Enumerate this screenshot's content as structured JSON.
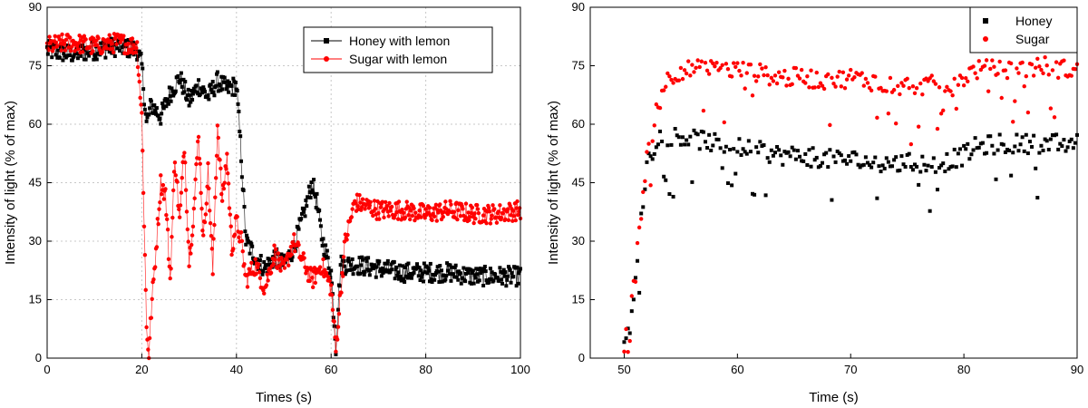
{
  "chart_data": [
    {
      "type": "line",
      "xlabel": "Times (s)",
      "ylabel": "Intensity of light (% of max)",
      "xlim": [
        0,
        100
      ],
      "ylim": [
        0,
        90
      ],
      "xticks": [
        0,
        20,
        40,
        60,
        80,
        100
      ],
      "yticks": [
        0,
        15,
        30,
        45,
        60,
        75,
        90
      ],
      "grid": true,
      "legend_position": "top-right",
      "series": [
        {
          "name": "Honey with lemon",
          "color": "#000000",
          "marker": "square",
          "x": [
            0,
            5,
            10,
            15,
            19,
            20,
            21,
            22,
            24,
            26,
            28,
            30,
            32,
            34,
            36,
            38,
            40,
            41,
            42,
            44,
            46,
            48,
            50,
            52,
            54,
            56,
            57,
            58,
            60,
            61,
            62,
            65,
            70,
            75,
            80,
            85,
            90,
            95,
            100
          ],
          "y": [
            79,
            78,
            79,
            80,
            79,
            75,
            60,
            65,
            62,
            68,
            72,
            66,
            70,
            67,
            71,
            69,
            70,
            52,
            30,
            26,
            23,
            26,
            24,
            28,
            36,
            45,
            40,
            31,
            22,
            3,
            24,
            24,
            23,
            22,
            22,
            22,
            21,
            21,
            21
          ]
        },
        {
          "name": "Sugar with lemon",
          "color": "#ff0000",
          "marker": "circle",
          "x": [
            0,
            5,
            10,
            15,
            19,
            20,
            21,
            21.5,
            22,
            23,
            24,
            25,
            26,
            27,
            28,
            29,
            30,
            31,
            32,
            33,
            34,
            35,
            36,
            37,
            38,
            39,
            40,
            41,
            42,
            44,
            46,
            48,
            50,
            52,
            54,
            56,
            58,
            60,
            61,
            62,
            63,
            65,
            70,
            75,
            80,
            85,
            90,
            95,
            100
          ],
          "y": [
            80,
            81,
            80,
            81,
            80,
            62,
            8,
            1,
            12,
            28,
            45,
            42,
            20,
            52,
            35,
            55,
            25,
            38,
            58,
            30,
            48,
            22,
            60,
            40,
            52,
            28,
            35,
            30,
            20,
            24,
            18,
            27,
            22,
            30,
            25,
            20,
            24,
            18,
            2,
            17,
            30,
            40,
            38,
            38,
            37,
            38,
            37,
            37,
            38
          ]
        }
      ]
    },
    {
      "type": "scatter",
      "xlabel": "Time (s)",
      "ylabel": "Intensity of light (% of max)",
      "xlim": [
        47,
        90
      ],
      "ylim": [
        0,
        90
      ],
      "xticks": [
        50,
        60,
        70,
        80,
        90
      ],
      "yticks": [
        0,
        15,
        30,
        45,
        60,
        75,
        90
      ],
      "grid": false,
      "legend_position": "top-right",
      "series": [
        {
          "name": "Honey",
          "color": "#000000",
          "marker": "square",
          "x": [
            50,
            50.5,
            51,
            51.5,
            52,
            53,
            54,
            55,
            56,
            57,
            58,
            60,
            62,
            64,
            66,
            68,
            70,
            72,
            74,
            76,
            78,
            79,
            80,
            81,
            83,
            85,
            87,
            89,
            90
          ],
          "y": [
            2,
            8,
            20,
            35,
            50,
            57,
            57,
            57,
            56,
            56,
            55,
            54,
            53,
            52,
            52,
            51,
            51,
            50,
            50,
            50,
            50,
            51,
            52,
            54,
            55,
            55,
            55,
            55,
            55
          ]
        },
        {
          "name": "Sugar",
          "color": "#ff0000",
          "marker": "circle",
          "x": [
            50,
            50.5,
            51,
            51.5,
            52,
            52.5,
            53,
            53.5,
            54,
            55,
            56,
            58,
            60,
            62,
            64,
            66,
            68,
            70,
            72,
            74,
            76,
            78,
            79,
            80,
            81,
            83,
            85,
            87,
            89,
            90
          ],
          "y": [
            4,
            10,
            22,
            38,
            52,
            60,
            66,
            70,
            72,
            74,
            74,
            74,
            74,
            73,
            72,
            72,
            71,
            72,
            71,
            70,
            70,
            70,
            69,
            72,
            74,
            74,
            74,
            75,
            74,
            74
          ]
        }
      ]
    }
  ]
}
